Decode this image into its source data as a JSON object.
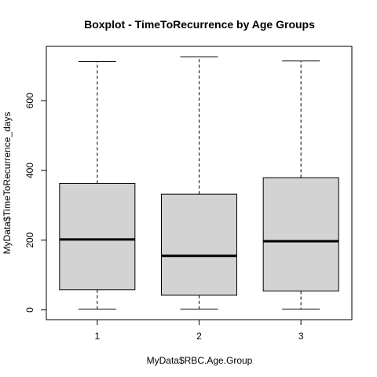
{
  "chart_data": {
    "type": "boxplot",
    "title": "Boxplot - TimeToRecurrence by Age Groups",
    "xlabel": "MyData$RBC.Age.Group",
    "ylabel": "MyData$TimeToRecurrence_days",
    "categories": [
      "1",
      "2",
      "3"
    ],
    "boxes": [
      {
        "category": "1",
        "min": 2,
        "q1": 58,
        "median": 202,
        "q3": 363,
        "max": 712
      },
      {
        "category": "2",
        "min": 2,
        "q1": 42,
        "median": 155,
        "q3": 332,
        "max": 726
      },
      {
        "category": "3",
        "min": 2,
        "q1": 54,
        "median": 197,
        "q3": 379,
        "max": 714
      }
    ],
    "yticks": [
      0,
      200,
      400,
      600
    ],
    "ylim": [
      -28,
      756
    ],
    "box_fill": "#d3d3d3",
    "grid": false,
    "legend": "none"
  }
}
